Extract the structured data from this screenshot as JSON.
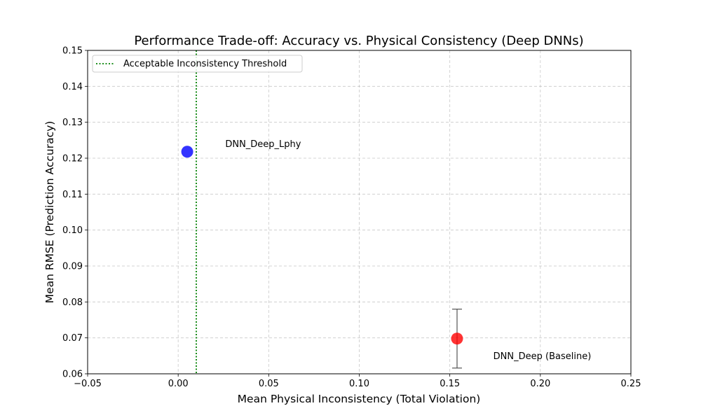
{
  "chart_data": {
    "type": "scatter",
    "title": "Performance Trade-off: Accuracy vs. Physical Consistency (Deep DNNs)",
    "xlabel": "Mean Physical Inconsistency (Total Violation)",
    "ylabel": "Mean RMSE (Prediction Accuracy)",
    "xlim": [
      -0.05,
      0.25
    ],
    "ylim": [
      0.06,
      0.15
    ],
    "xticks": [
      -0.05,
      0.0,
      0.05,
      0.1,
      0.15,
      0.2,
      0.25
    ],
    "xtick_labels": [
      "−0.05",
      "0.00",
      "0.05",
      "0.10",
      "0.15",
      "0.20",
      "0.25"
    ],
    "yticks": [
      0.06,
      0.07,
      0.08,
      0.09,
      0.1,
      0.11,
      0.12,
      0.13,
      0.14,
      0.15
    ],
    "ytick_labels": [
      "0.06",
      "0.07",
      "0.08",
      "0.09",
      "0.10",
      "0.11",
      "0.12",
      "0.13",
      "0.14",
      "0.15"
    ],
    "grid": true,
    "legend_position": "top-left",
    "threshold": {
      "label": "Acceptable Inconsistency Threshold",
      "x": 0.01,
      "color": "#008000"
    },
    "points": [
      {
        "label": "DNN_Deep_Lphy",
        "x": 0.005,
        "y": 0.1218,
        "yerr": 0.0002,
        "color": "#0000ff",
        "label_x": 0.026,
        "label_y": 0.124
      },
      {
        "label": "DNN_Deep (Baseline)",
        "x": 0.154,
        "y": 0.0698,
        "yerr": 0.0082,
        "color": "#ff0000",
        "label_x": 0.174,
        "label_y": 0.065
      }
    ]
  }
}
